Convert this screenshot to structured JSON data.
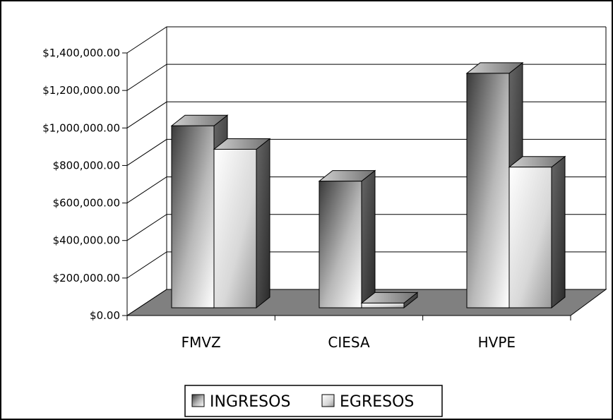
{
  "chart_data": {
    "type": "bar",
    "categories": [
      "FMVZ",
      "CIESA",
      "HVPE"
    ],
    "series": [
      {
        "name": "INGRESOS",
        "values": [
          970000,
          675000,
          1250000
        ]
      },
      {
        "name": "EGRESOS",
        "values": [
          845000,
          25000,
          750000
        ]
      }
    ],
    "ylim": [
      0,
      1400000
    ],
    "yticks": [
      0,
      200000,
      400000,
      600000,
      800000,
      1000000,
      1200000,
      1400000
    ],
    "ytick_labels": [
      "$0.00",
      "$200,000.00",
      "$400,000.00",
      "$600,000.00",
      "$800,000.00",
      "$1,000,000.00",
      "$1,200,000.00",
      "$1,400,000.00"
    ],
    "grid": true,
    "legend_position": "bottom",
    "style": "3d-clustered-column",
    "colors": {
      "floor": "#808080",
      "bar_light": "#ffffff",
      "bar_dark": "#555555",
      "side_dark": "#333333",
      "top": "#b0b0b0"
    }
  }
}
